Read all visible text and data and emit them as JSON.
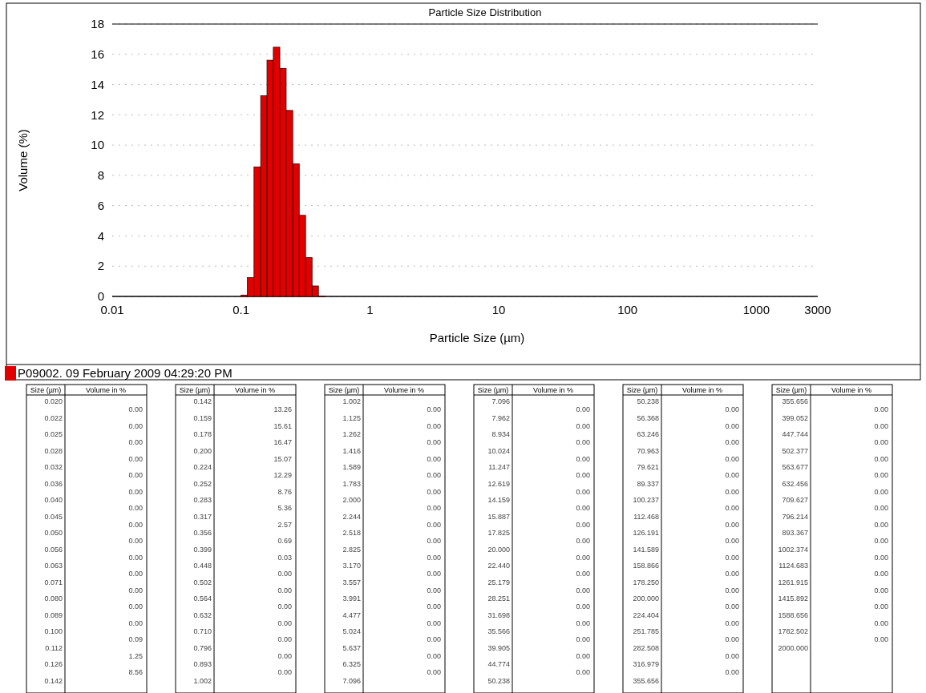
{
  "chart_data": [
    {
      "type": "histogram",
      "title": "Particle Size Distribution",
      "xlabel": "Particle Size (µm)",
      "ylabel": "Volume (%)",
      "log": "x",
      "xlim": [
        0.01,
        3000
      ],
      "xticks": [
        0.01,
        0.1,
        1,
        10,
        100,
        1000,
        3000
      ],
      "ylim": [
        0,
        18
      ],
      "yticks": [
        0,
        2,
        4,
        6,
        8,
        10,
        12,
        14,
        16,
        18
      ],
      "grid": "y",
      "legend": "bottom",
      "bins": [
        0.1,
        0.112,
        0.126,
        0.142,
        0.159,
        0.178,
        0.2,
        0.224,
        0.252,
        0.283,
        0.317,
        0.356,
        0.399,
        0.448
      ],
      "series": [
        {
          "name": "P09002. 09 February 2009 04:29:20 PM",
          "color": "#e00000",
          "values": [
            0.09,
            1.25,
            8.56,
            13.26,
            15.61,
            16.47,
            15.07,
            12.29,
            8.76,
            5.36,
            2.57,
            0.69,
            0.03
          ]
        }
      ]
    },
    {
      "type": "other",
      "xlabel": "Size (µm)",
      "ylabel": "Volume in %",
      "categories": [
        "0.020",
        "0.022",
        "0.025",
        "0.028",
        "0.032",
        "0.036",
        "0.040",
        "0.045",
        "0.050",
        "0.056",
        "0.063",
        "0.071",
        "0.080",
        "0.089",
        "0.100",
        "0.112",
        "0.126",
        "0.142",
        "0.159",
        "0.178",
        "0.200",
        "0.224",
        "0.252",
        "0.283",
        "0.317",
        "0.356",
        "0.399",
        "0.448",
        "0.502",
        "0.564",
        "0.632",
        "0.710",
        "0.796",
        "0.893",
        "1.002",
        "1.125",
        "1.262",
        "1.416",
        "1.589",
        "1.783",
        "2.000",
        "2.244",
        "2.518",
        "2.825",
        "3.170",
        "3.557",
        "3.991",
        "4.477",
        "5.024",
        "5.637",
        "6.325",
        "7.096",
        "7.962",
        "8.934",
        "10.024",
        "11.247",
        "12.619",
        "14.159",
        "15.887",
        "17.825",
        "20.000",
        "22.440",
        "25.179",
        "28.251",
        "31.698",
        "35.566",
        "39.905",
        "44.774",
        "50.238",
        "56.368",
        "63.246",
        "70.963",
        "79.621",
        "89.337",
        "100.237",
        "112.468",
        "126.191",
        "141.589",
        "158.866",
        "178.250",
        "200.000",
        "224.404",
        "251.785",
        "282.508",
        "316.979",
        "355.656",
        "399.052",
        "447.744",
        "502.377",
        "563.677",
        "632.456",
        "709.627",
        "796.214",
        "893.367",
        "1002.374",
        "1124.683",
        "1261.915",
        "1415.892",
        "1588.656",
        "1782.502",
        "2000.000"
      ],
      "value_labels": [
        "0.00",
        "0.00",
        "0.00",
        "0.00",
        "0.00",
        "0.00",
        "0.00",
        "0.00",
        "0.00",
        "0.00",
        "0.00",
        "0.00",
        "0.00",
        "0.00",
        "0.09",
        "1.25",
        "8.56",
        "13.26",
        "15.61",
        "16.47",
        "15.07",
        "12.29",
        "8.76",
        "5.36",
        "2.57",
        "0.69",
        "0.03",
        "0.00",
        "0.00",
        "0.00",
        "0.00",
        "0.00",
        "0.00",
        "0.00",
        "0.00",
        "0.00",
        "0.00",
        "0.00",
        "0.00",
        "0.00",
        "0.00",
        "0.00",
        "0.00",
        "0.00",
        "0.00",
        "0.00",
        "0.00",
        "0.00",
        "0.00",
        "0.00",
        "0.00",
        "0.00",
        "0.00",
        "0.00",
        "0.00",
        "0.00",
        "0.00",
        "0.00",
        "0.00",
        "0.00",
        "0.00",
        "0.00",
        "0.00",
        "0.00",
        "0.00",
        "0.00",
        "0.00",
        "0.00",
        "0.00",
        "0.00",
        "0.00",
        "0.00",
        "0.00",
        "0.00",
        "0.00",
        "0.00",
        "0.00",
        "0.00",
        "0.00",
        "0.00",
        "0.00",
        "0.00",
        "0.00",
        "0.00",
        "0.00",
        "0.00",
        "0.00",
        "0.00",
        "0.00",
        "0.00",
        "0.00",
        "0.00",
        "0.00",
        "0.00",
        "0.00",
        "0.00",
        "0.00",
        "0.00",
        "0.00",
        "0.00"
      ]
    }
  ]
}
